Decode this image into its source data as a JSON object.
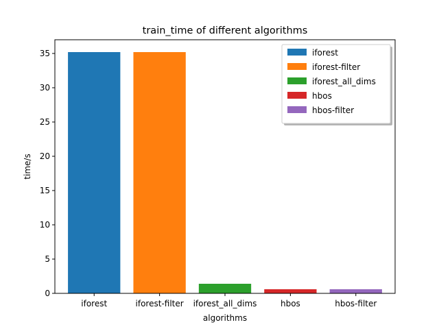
{
  "chart_data": {
    "type": "bar",
    "title": "train_time of different algorithms",
    "xlabel": "algorithms",
    "ylabel": "time/s",
    "categories": [
      "iforest",
      "iforest-filter",
      "iforest_all_dims",
      "hbos",
      "hbos-filter"
    ],
    "values": [
      35.2,
      35.2,
      1.4,
      0.6,
      0.6
    ],
    "colors": [
      "#1f77b4",
      "#ff7f0e",
      "#2ca02c",
      "#d62728",
      "#9467bd"
    ],
    "ylim": [
      0,
      37
    ],
    "yticks": [
      0,
      5,
      10,
      15,
      20,
      25,
      30,
      35
    ],
    "grid": false,
    "legend": {
      "placement": "top-right",
      "entries": [
        "iforest",
        "iforest-filter",
        "iforest_all_dims",
        "hbos",
        "hbos-filter"
      ]
    }
  }
}
